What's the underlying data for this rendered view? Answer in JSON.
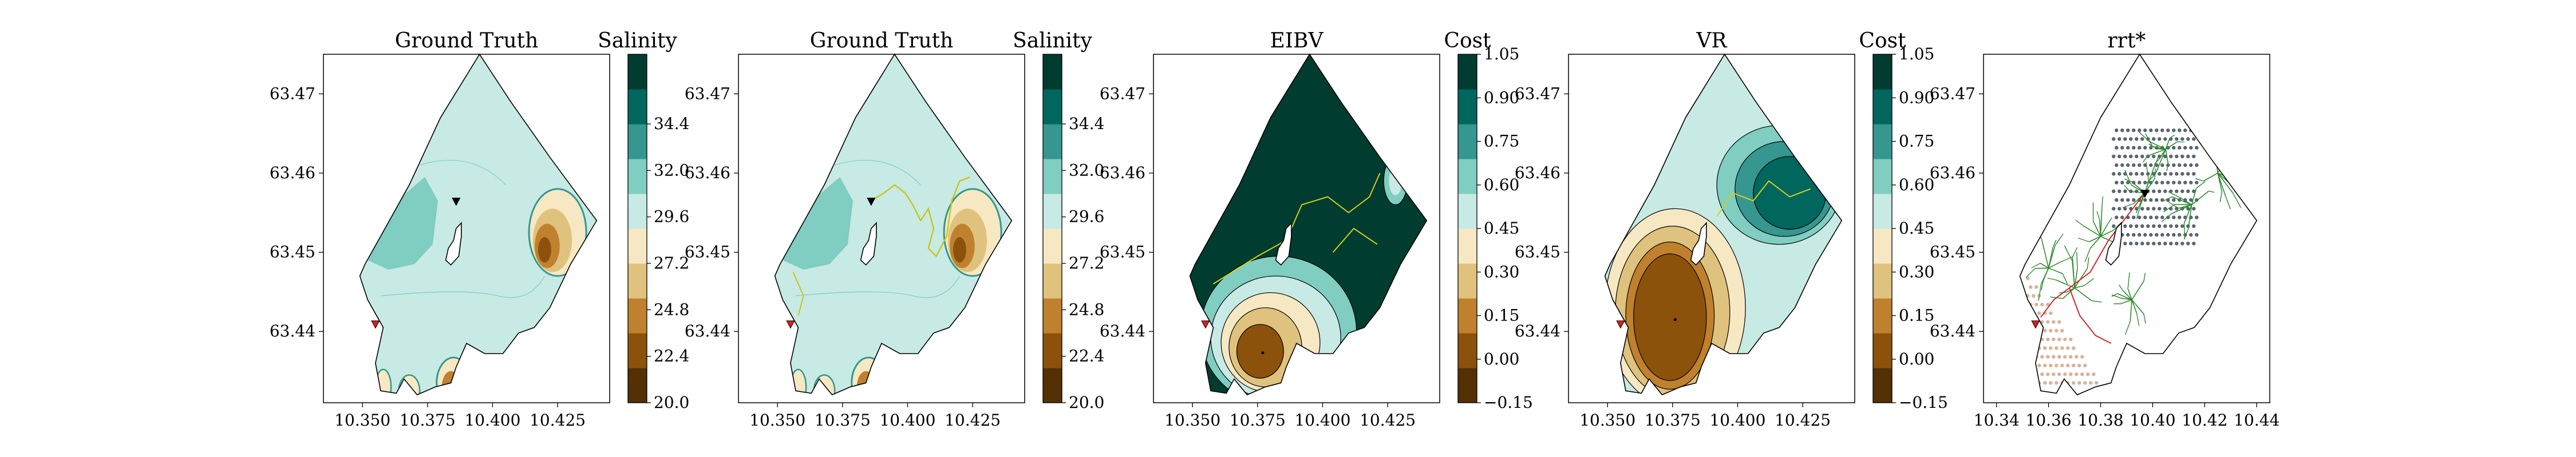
{
  "chart_data": [
    {
      "type": "heatmap",
      "title": "Ground Truth",
      "colorbar_label": "Salinity",
      "colorbar_ticks": [
        "20.0",
        "22.4",
        "24.8",
        "27.2",
        "29.6",
        "32.0",
        "34.4"
      ],
      "xlim": [
        10.335,
        10.445
      ],
      "ylim": [
        63.431,
        63.475
      ],
      "x_ticks": [
        "10.350",
        "10.375",
        "10.400",
        "10.425"
      ],
      "y_ticks": [
        "63.44",
        "63.45",
        "63.46",
        "63.47"
      ],
      "agent_marker": {
        "x": 10.386,
        "y": 63.4565
      },
      "start_marker": {
        "x": 10.355,
        "y": 63.441
      },
      "colors": [
        "#543005",
        "#8c510a",
        "#bf812d",
        "#dfc27d",
        "#f6e8c3",
        "#c7eae5",
        "#80cdc1",
        "#35978f",
        "#01665e",
        "#003c30"
      ]
    },
    {
      "type": "heatmap",
      "title": "Ground Truth",
      "colorbar_label": "Salinity",
      "colorbar_ticks": [
        "20.0",
        "22.4",
        "24.8",
        "27.2",
        "29.6",
        "32.0",
        "34.4"
      ],
      "xlim": [
        10.335,
        10.445
      ],
      "ylim": [
        63.431,
        63.475
      ],
      "x_ticks": [
        "10.350",
        "10.375",
        "10.400",
        "10.425"
      ],
      "y_ticks": [
        "63.44",
        "63.45",
        "63.46",
        "63.47"
      ],
      "agent_marker": {
        "x": 10.386,
        "y": 63.4565
      },
      "start_marker": {
        "x": 10.355,
        "y": 63.441
      },
      "trajectory": [
        [
          10.386,
          63.4565
        ],
        [
          10.391,
          63.4575
        ],
        [
          10.395,
          63.4585
        ],
        [
          10.399,
          63.4575
        ],
        [
          10.402,
          63.456
        ],
        [
          10.405,
          63.454
        ],
        [
          10.408,
          63.4555
        ],
        [
          10.41,
          63.453
        ],
        [
          10.408,
          63.4505
        ],
        [
          10.411,
          63.4495
        ],
        [
          10.415,
          63.452
        ],
        [
          10.417,
          63.4565
        ],
        [
          10.42,
          63.459
        ],
        [
          10.424,
          63.4595
        ]
      ]
    },
    {
      "type": "heatmap",
      "title": "EIBV",
      "colorbar_label": "Cost",
      "colorbar_ticks": [
        "−0.15",
        "0.00",
        "0.15",
        "0.30",
        "0.45",
        "0.60",
        "0.75",
        "0.90",
        "1.05"
      ],
      "xlim": [
        10.335,
        10.445
      ],
      "ylim": [
        63.431,
        63.475
      ],
      "x_ticks": [
        "10.350",
        "10.375",
        "10.400",
        "10.425"
      ],
      "y_ticks": [
        "63.44",
        "63.45",
        "63.46",
        "63.47"
      ],
      "start_marker": {
        "x": 10.355,
        "y": 63.441
      }
    },
    {
      "type": "heatmap",
      "title": "VR",
      "colorbar_label": "Cost",
      "colorbar_ticks": [
        "−0.15",
        "0.00",
        "0.15",
        "0.30",
        "0.45",
        "0.60",
        "0.75",
        "0.90",
        "1.05"
      ],
      "xlim": [
        10.335,
        10.445
      ],
      "ylim": [
        63.431,
        63.475
      ],
      "x_ticks": [
        "10.350",
        "10.375",
        "10.400",
        "10.425"
      ],
      "y_ticks": [
        "63.44",
        "63.45",
        "63.46",
        "63.47"
      ],
      "start_marker": {
        "x": 10.355,
        "y": 63.441
      }
    },
    {
      "type": "scatter",
      "title": "rrt*",
      "xlim": [
        10.335,
        10.445
      ],
      "ylim": [
        63.431,
        63.475
      ],
      "x_ticks": [
        "10.34",
        "10.36",
        "10.38",
        "10.40",
        "10.42",
        "10.44"
      ],
      "y_ticks": [
        "63.44",
        "63.45",
        "63.46",
        "63.47"
      ],
      "agent_marker": {
        "x": 10.397,
        "y": 63.4575
      },
      "start_marker": {
        "x": 10.355,
        "y": 63.441
      }
    }
  ]
}
